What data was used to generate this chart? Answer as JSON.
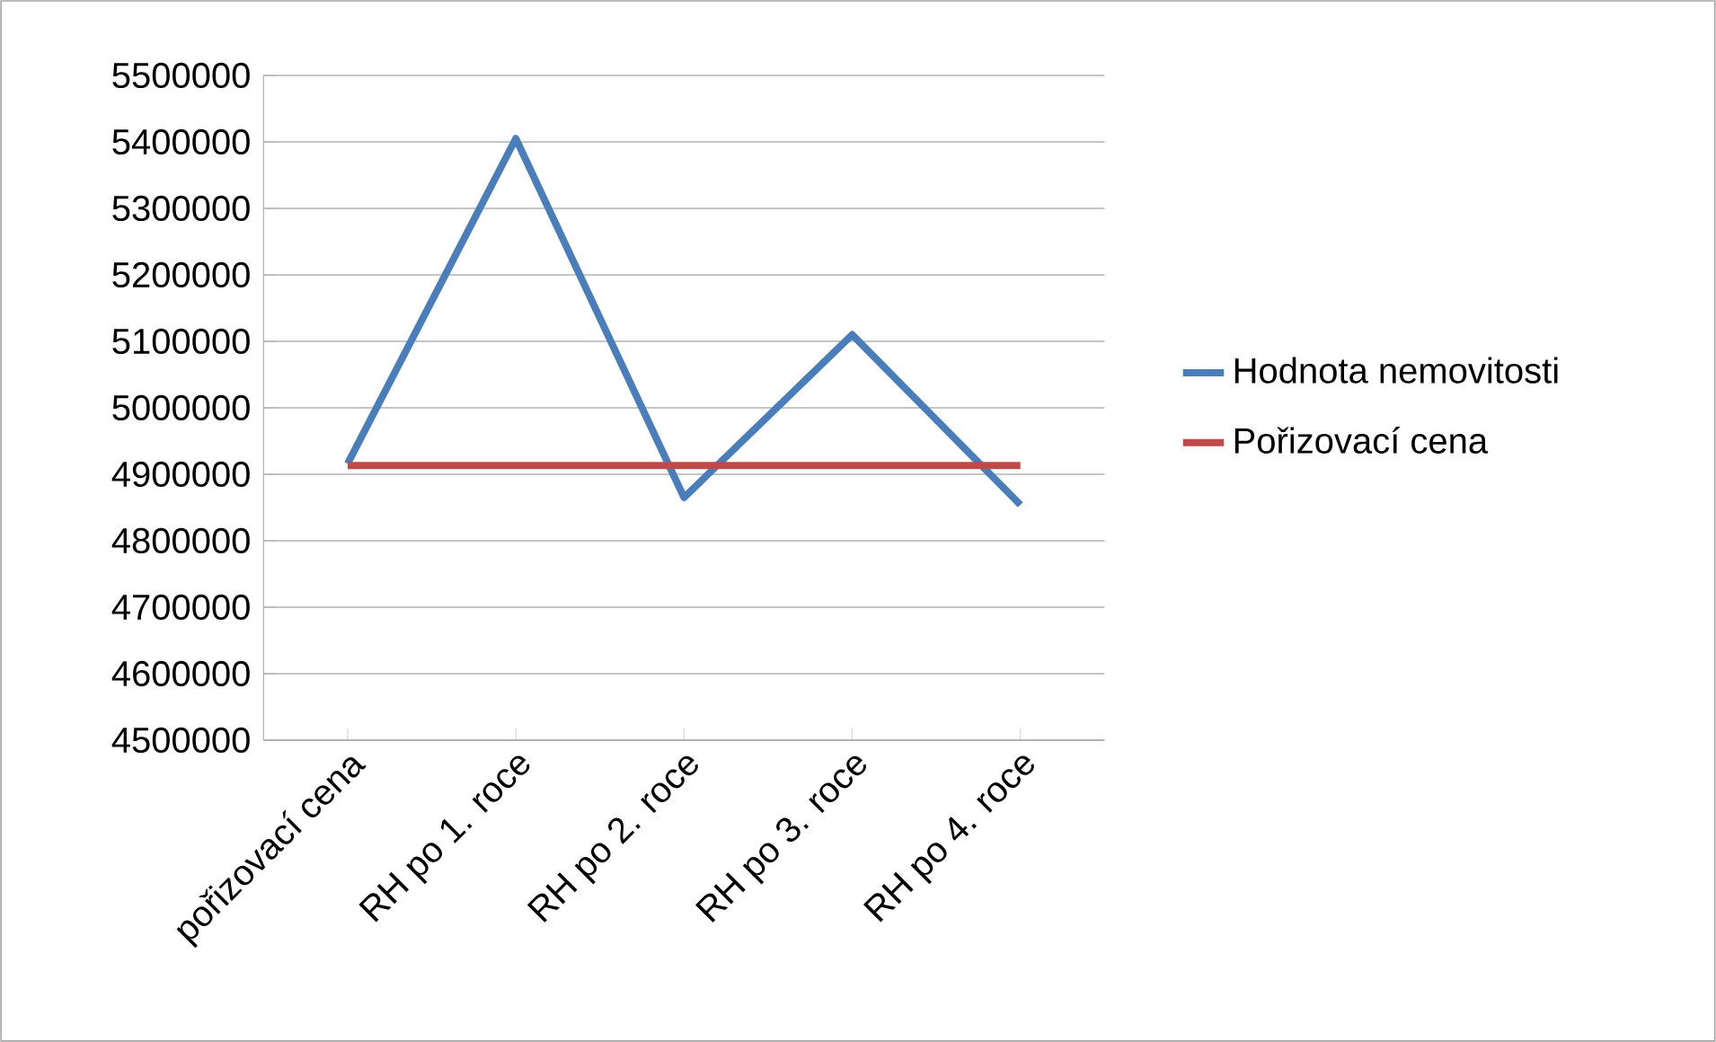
{
  "chart_data": {
    "type": "line",
    "categories": [
      "pořizovací cena",
      "RH po 1. roce",
      "RH po 2. roce",
      "RH po 3. roce",
      "RH po 4. roce"
    ],
    "series": [
      {
        "name": "Hodnota nemovitosti",
        "color": "#4a7ebb",
        "values": [
          4916000,
          5405000,
          4865000,
          5110000,
          4854000
        ]
      },
      {
        "name": "Pořizovací cena",
        "color": "#be4b48",
        "values": [
          4913000,
          4913000,
          4913000,
          4913000,
          4913000
        ]
      }
    ],
    "ylim": [
      4500000,
      5500000
    ],
    "yticks": [
      4500000,
      4600000,
      4700000,
      4800000,
      4900000,
      5000000,
      5100000,
      5200000,
      5300000,
      5400000,
      5500000
    ],
    "grid": "y",
    "legend": "right",
    "marker": "none",
    "line_style": "solid"
  }
}
